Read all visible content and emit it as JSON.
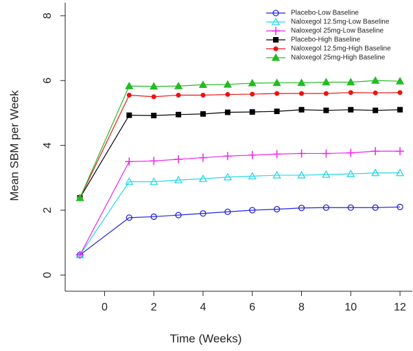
{
  "chart_data": {
    "type": "line",
    "xlabel": "Time (Weeks)",
    "ylabel": "Mean SBM per Week",
    "x": [
      -1,
      1,
      2,
      3,
      4,
      5,
      6,
      7,
      8,
      9,
      10,
      11,
      12
    ],
    "xlim": [
      -1.6,
      12.5
    ],
    "xticks": [
      0,
      2,
      4,
      6,
      8,
      10,
      12
    ],
    "ylim": [
      -0.5,
      8.4
    ],
    "yticks": [
      0,
      2,
      4,
      6,
      8
    ],
    "legend": "top-right",
    "series": [
      {
        "name": "Placebo-Low Baseline",
        "color": "#2222dd",
        "marker": "open-circle",
        "values": [
          0.62,
          1.77,
          1.8,
          1.85,
          1.9,
          1.95,
          2.0,
          2.03,
          2.07,
          2.08,
          2.08,
          2.08,
          2.1
        ]
      },
      {
        "name": "Naloxegol 12.5mg-Low Baseline",
        "color": "#22d8e8",
        "marker": "open-triangle",
        "values": [
          0.62,
          2.88,
          2.88,
          2.93,
          2.97,
          3.02,
          3.05,
          3.08,
          3.08,
          3.1,
          3.12,
          3.15,
          3.15
        ]
      },
      {
        "name": "Naloxegol 25mg-Low Baseline",
        "color": "#ee22ee",
        "marker": "plus",
        "values": [
          0.62,
          3.5,
          3.52,
          3.57,
          3.62,
          3.67,
          3.7,
          3.73,
          3.75,
          3.75,
          3.77,
          3.82,
          3.82
        ]
      },
      {
        "name": "Placebo-High Baseline",
        "color": "#000000",
        "marker": "filled-square",
        "values": [
          2.38,
          4.93,
          4.92,
          4.95,
          4.97,
          5.02,
          5.03,
          5.05,
          5.1,
          5.08,
          5.1,
          5.08,
          5.1
        ]
      },
      {
        "name": "Naloxegol 12.5mg-High Baseline",
        "color": "#ee1111",
        "marker": "filled-circle",
        "values": [
          2.38,
          5.55,
          5.5,
          5.55,
          5.55,
          5.57,
          5.58,
          5.6,
          5.6,
          5.6,
          5.63,
          5.62,
          5.63
        ]
      },
      {
        "name": "Naloxegol 25mg-High Baseline",
        "color": "#22bb22",
        "marker": "filled-triangle",
        "values": [
          2.38,
          5.83,
          5.82,
          5.83,
          5.87,
          5.88,
          5.92,
          5.93,
          5.93,
          5.95,
          5.95,
          6.0,
          5.98
        ]
      }
    ]
  }
}
